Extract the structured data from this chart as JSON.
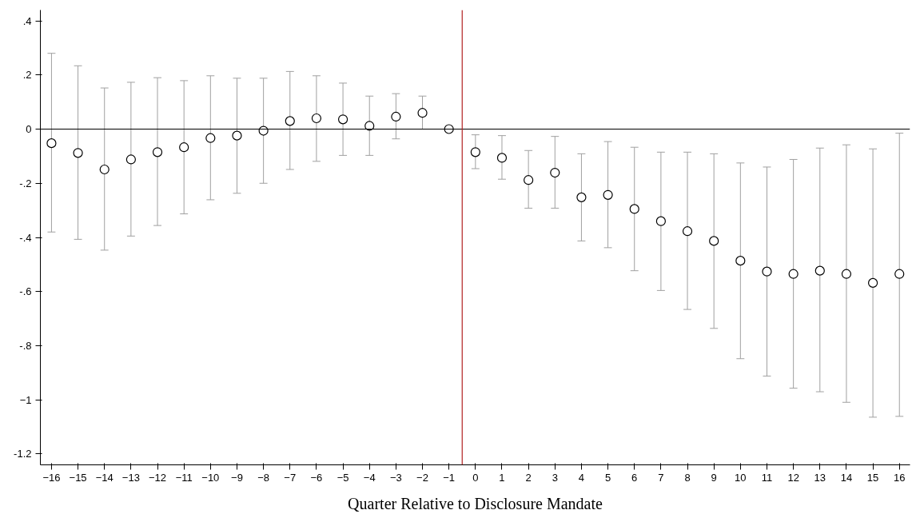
{
  "chart_data": {
    "type": "scatter",
    "xlabel": "Quarter Relative to Disclosure Mandate",
    "xlim": [
      -16.42,
      16.4
    ],
    "ylim": [
      -1.24,
      0.44
    ],
    "xticks": [
      -16,
      -15,
      -14,
      -13,
      -12,
      -11,
      -10,
      -9,
      -8,
      -7,
      -6,
      -5,
      -4,
      -3,
      -2,
      -1,
      0,
      1,
      2,
      3,
      4,
      5,
      6,
      7,
      8,
      9,
      10,
      11,
      12,
      13,
      14,
      15,
      16
    ],
    "yticks": [
      {
        "value": 0.4,
        "label": ".4"
      },
      {
        "value": 0.2,
        "label": ".2"
      },
      0,
      {
        "value": -0.2,
        "label": "-.2"
      },
      {
        "value": -0.4,
        "label": "-.4"
      },
      {
        "value": -0.6,
        "label": "-.6"
      },
      {
        "value": -0.8,
        "label": "-.8"
      },
      -1,
      {
        "value": -1.2,
        "label": "-1.2"
      }
    ],
    "grid": false,
    "marker": "circle",
    "ref_lines": [
      {
        "axis": "y",
        "value": 0,
        "color": "#000000"
      },
      {
        "axis": "x",
        "value": -0.5,
        "color": "#b22222"
      }
    ],
    "series": [
      {
        "color": "#000000",
        "x": [
          -16,
          -15,
          -14,
          -13,
          -12,
          -11,
          -10,
          -9,
          -8,
          -7,
          -6,
          -5,
          -4,
          -3,
          -2,
          -1,
          0,
          1,
          2,
          3,
          4,
          5,
          6,
          7,
          8,
          9,
          10,
          11,
          12,
          13,
          14,
          15,
          16
        ],
        "values": [
          -0.052,
          -0.088,
          -0.149,
          -0.112,
          -0.085,
          -0.067,
          -0.033,
          -0.024,
          -0.006,
          0.03,
          0.04,
          0.036,
          0.012,
          0.046,
          0.06,
          0,
          -0.085,
          -0.106,
          -0.188,
          -0.161,
          -0.252,
          -0.243,
          -0.295,
          -0.34,
          -0.377,
          -0.413,
          -0.486,
          -0.526,
          -0.535,
          -0.523,
          -0.535,
          -0.568,
          -0.535
        ],
        "errors": [
          [
            -0.38,
            0.28
          ],
          [
            -0.407,
            0.234
          ],
          [
            -0.447,
            0.152
          ],
          [
            -0.395,
            0.173
          ],
          [
            -0.356,
            0.19
          ],
          [
            -0.313,
            0.179
          ],
          [
            -0.261,
            0.197
          ],
          [
            -0.237,
            0.188
          ],
          [
            -0.2,
            0.188
          ],
          [
            -0.149,
            0.213
          ],
          [
            -0.119,
            0.197
          ],
          [
            -0.097,
            0.17
          ],
          [
            -0.097,
            0.122
          ],
          [
            -0.036,
            0.131
          ],
          [
            0,
            0.122
          ],
          null,
          [
            -0.146,
            -0.021
          ],
          [
            -0.185,
            -0.024
          ],
          [
            -0.292,
            -0.079
          ],
          [
            -0.292,
            -0.027
          ],
          [
            -0.413,
            -0.091
          ],
          [
            -0.438,
            -0.046
          ],
          [
            -0.523,
            -0.067
          ],
          [
            -0.596,
            -0.085
          ],
          [
            -0.666,
            -0.085
          ],
          [
            -0.736,
            -0.091
          ],
          [
            -0.848,
            -0.125
          ],
          [
            -0.912,
            -0.14
          ],
          [
            -0.957,
            -0.112
          ],
          [
            -0.97,
            -0.07
          ],
          [
            -1.009,
            -0.058
          ],
          [
            -1.064,
            -0.073
          ],
          [
            -1.061,
            -0.015
          ]
        ]
      }
    ]
  }
}
